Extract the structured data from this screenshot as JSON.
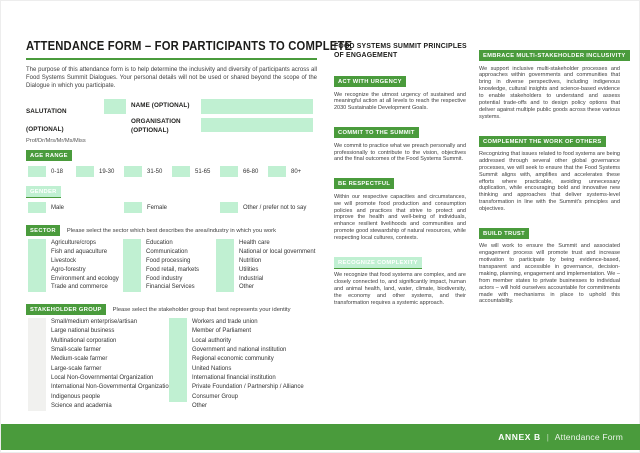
{
  "colors": {
    "accent_green": "#4a9b3c",
    "field_mint": "#c0f0d2"
  },
  "form": {
    "title": "ATTENDANCE FORM – FOR PARTICIPANTS TO COMPLETE",
    "intro": "The purpose of this attendance form is to help determine the inclusivity and diversity of participants across all Food Systems Summit Dialogues. Your personal details will not be used or shared beyond the scope of the Dialogue in which you participate.",
    "salutation": {
      "label": "SALUTATION (OPTIONAL)",
      "hint": "Prof/Dr/Mrs/Mr/Ms/Miss",
      "value": ""
    },
    "name": {
      "label": "NAME (OPTIONAL)",
      "value": ""
    },
    "organisation": {
      "label": "ORGANISATION (OPTIONAL)",
      "value": ""
    },
    "age": {
      "label": "AGE RANGE",
      "options": [
        "0-18",
        "19-30",
        "31-50",
        "51-65",
        "66-80",
        "80+"
      ]
    },
    "gender": {
      "label": "GENDER",
      "options": [
        "Male",
        "Female",
        "Other / prefer not to say"
      ]
    },
    "sector": {
      "label": "SECTOR",
      "prompt": "Please select the sector which best describes the area/industry in which you work",
      "col1": [
        "Agriculture/crops",
        "Fish and aquaculture",
        "Livestock",
        "Agro-forestry",
        "Environment and ecology",
        "Trade and commerce"
      ],
      "col2": [
        "Education",
        "Communication",
        "Food processing",
        "Food retail, markets",
        "Food industry",
        "Financial Services"
      ],
      "col3": [
        "Health care",
        "National or local government",
        "Nutrition",
        "Utilities",
        "Industrial",
        "Other"
      ]
    },
    "stakeholder": {
      "label": "STAKEHOLDER GROUP",
      "prompt": "Please select the stakeholder group that best represents your identity",
      "col1": [
        "Small/medium enterprise/artisan",
        "Large national business",
        "Multinational corporation",
        "Small-scale farmer",
        "Medium-scale farmer",
        "Large-scale farmer",
        "Local Non-Governmental Organization",
        "International Non-Governmental Organization",
        "Indigenous people",
        "Science and academia"
      ],
      "col2": [
        "Workers and trade union",
        "Member of Parliament",
        "Local authority",
        "Government and national institution",
        "Regional economic community",
        "United Nations",
        "International financial institution",
        "Private Foundation / Partnership / Alliance",
        "Consumer Group",
        "Other"
      ]
    }
  },
  "principles": {
    "heading1": "FOOD SYSTEMS SUMMIT PRINCIPLES",
    "heading2": "OF ENGAGEMENT",
    "col1": [
      {
        "badge": "ACT WITH URGENCY",
        "variant": "solid",
        "text": "We recognize the utmost urgency of sustained and meaningful action at all levels to reach the respective 2030 Sustainable Development Goals."
      },
      {
        "badge": "COMMIT TO THE SUMMIT",
        "variant": "solid",
        "text": "We commit to practice what we preach personally and professionally to contribute to the vision, objectives and the final outcomes of the Food Systems Summit."
      },
      {
        "badge": "BE RESPECTFUL",
        "variant": "solid",
        "text": "Within our respective capacities and circumstances, we will promote food production and consumption policies and practices that strive to protect and improve the health and well-being of individuals, enhance resilient livelihoods and communities and promote good stewardship of natural resources, while respecting local cultures, contexts."
      },
      {
        "badge": "RECOGNIZE COMPLEXITY",
        "variant": "mint-badge",
        "text": "We recognize that food systems are complex, and are closely connected to, and significantly impact, human and animal health, land, water, climate, biodiversity, the economy and other systems, and their transformation requires a systemic approach."
      }
    ],
    "col2": [
      {
        "badge": "EMBRACE MULTI-STAKEHOLDER INCLUSIVITY",
        "variant": "solid",
        "text": "We support inclusive multi-stakeholder processes and approaches within governments and communities that bring in diverse perspectives, including indigenous knowledge, cultural insights and science-based evidence to enable stakeholders to understand and assess potential trade-offs and to design policy options that deliver against multiple public goods across these various systems."
      },
      {
        "badge": "COMPLEMENT THE WORK OF OTHERS",
        "variant": "solid",
        "text": "Recognizing that issues related to food systems are being addressed through several other global governance processes, we will seek to ensure that the Food Systems Summit aligns with, amplifies and accelerates these efforts where practicable, avoiding unnecessary duplication, while encouraging bold and innovative new thinking and approaches that deliver systems-level transformation in line with the Summit's principles and objectives."
      },
      {
        "badge": "BUILD TRUST",
        "variant": "solid",
        "text": "We will work to ensure the Summit and associated engagement process will promote trust and increase motivation to participate by being evidence-based, transparent and accessible in governance, decision-making, planning, engagement and implementation. We – from member states to private businesses to individual actors – will hold ourselves accountable for commitments made with mechanisms in place to uphold this accountability."
      }
    ]
  },
  "footer": {
    "annex": "ANNEX B",
    "divider": "|",
    "label": "Attendance Form"
  }
}
